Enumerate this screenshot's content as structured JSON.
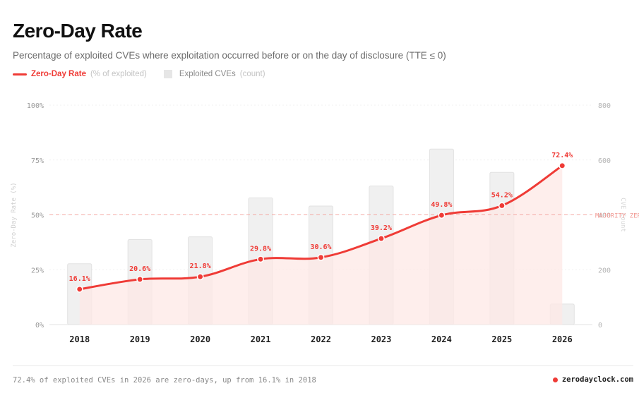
{
  "header": {
    "title": "Zero-Day Rate",
    "subtitle": "Percentage of exploited CVEs where exploitation occurred before or on the day of disclosure (TTE ≤ 0)"
  },
  "legend": {
    "line_label": "Zero-Day Rate",
    "line_unit": "(% of exploited)",
    "bar_label": "Exploited CVEs",
    "bar_unit": "(count)"
  },
  "chart_data": {
    "type": "bar",
    "categories": [
      "2018",
      "2019",
      "2020",
      "2021",
      "2022",
      "2023",
      "2024",
      "2025",
      "2026"
    ],
    "series": [
      {
        "name": "Zero-Day Rate",
        "type": "line",
        "axis": "left",
        "values": [
          16.1,
          20.6,
          21.8,
          29.8,
          30.6,
          39.2,
          49.8,
          54.2,
          72.4
        ],
        "labels": [
          "16.1%",
          "20.6%",
          "21.8%",
          "29.8%",
          "30.6%",
          "39.2%",
          "49.8%",
          "54.2%",
          "72.4%"
        ]
      },
      {
        "name": "Exploited CVEs",
        "type": "bar",
        "axis": "right",
        "values": [
          222,
          310,
          320,
          462,
          432,
          505,
          640,
          555,
          75
        ]
      }
    ],
    "y_left": {
      "label": "Zero-Day Rate (%)",
      "lim": [
        0,
        100
      ],
      "ticks": [
        "0%",
        "25%",
        "50%",
        "75%",
        "100%"
      ],
      "tick_values": [
        0,
        25,
        50,
        75,
        100
      ]
    },
    "y_right": {
      "label": "CVE Count",
      "lim": [
        0,
        800
      ],
      "ticks": [
        "0",
        "200",
        "400",
        "600",
        "800"
      ],
      "tick_values": [
        0,
        200,
        400,
        600,
        800
      ]
    },
    "reference_line": {
      "value": 50,
      "label": "MAJORITY ZERO-DAY"
    },
    "colors": {
      "line": "#ef3b36",
      "area": "#fde8e6",
      "bar": "#f0f0f0",
      "bar_stroke": "#e2e2e2",
      "grid": "#f1f1f1",
      "reference": "#f4a9a4"
    },
    "grid": true,
    "legend_position": "top-left"
  },
  "footer": {
    "note": "72.4% of exploited CVEs in 2026 are zero-days, up from 16.1% in 2018",
    "brand": "zerodayclock.com"
  }
}
